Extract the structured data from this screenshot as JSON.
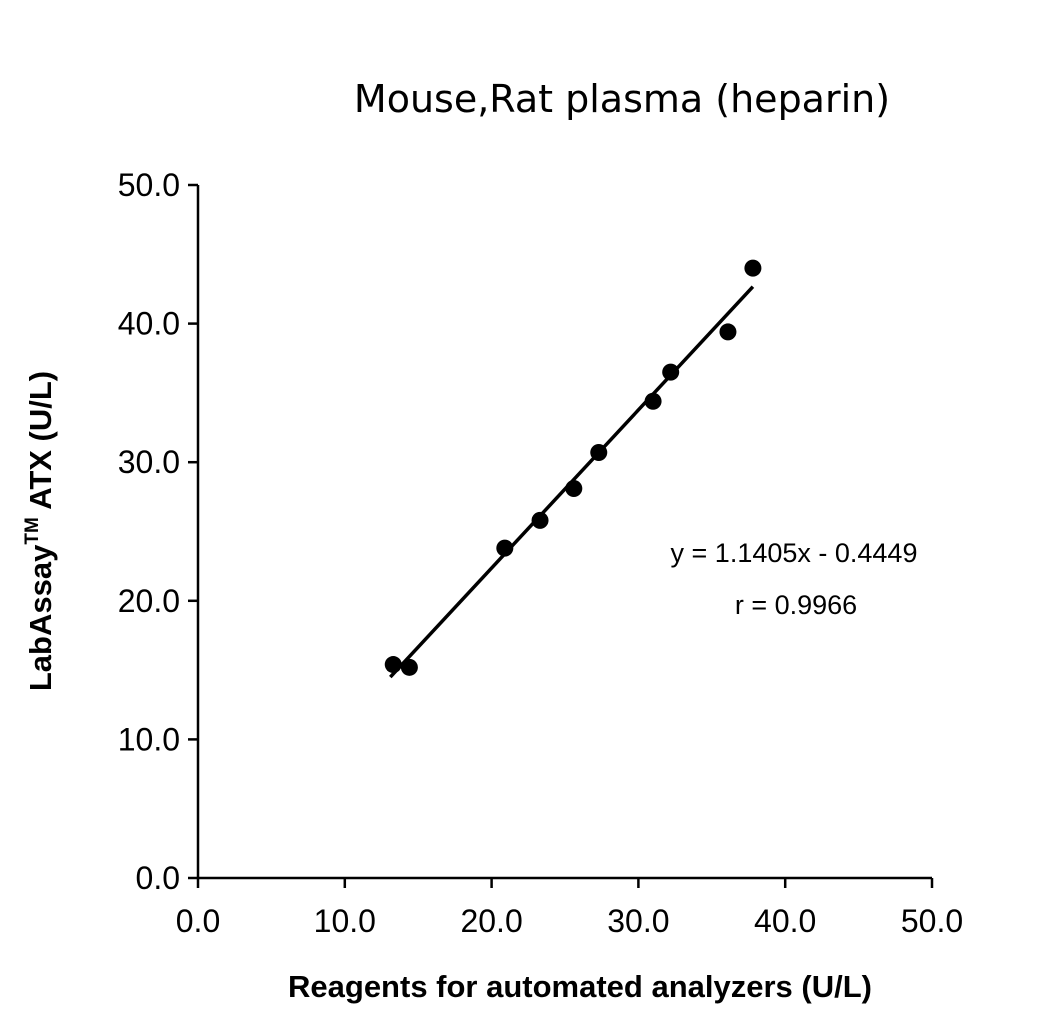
{
  "chart_data": {
    "type": "scatter",
    "title": "Mouse,Rat plasma (heparin)",
    "xlabel": "Reagents for automated analyzers (U/L)",
    "ylabel": {
      "before": "LabAssay",
      "superscript": "TM",
      "after": " ATX (U/L)"
    },
    "xlim": [
      0,
      50
    ],
    "ylim": [
      0,
      50
    ],
    "x_ticks": [
      "0.0",
      "10.0",
      "20.0",
      "30.0",
      "40.0",
      "50.0"
    ],
    "y_ticks": [
      "0.0",
      "10.0",
      "20.0",
      "30.0",
      "40.0",
      "50.0"
    ],
    "grid": false,
    "points": [
      {
        "x": 13.3,
        "y": 15.4
      },
      {
        "x": 14.4,
        "y": 15.2
      },
      {
        "x": 20.9,
        "y": 23.8
      },
      {
        "x": 23.3,
        "y": 25.8
      },
      {
        "x": 25.6,
        "y": 28.1
      },
      {
        "x": 27.3,
        "y": 30.7
      },
      {
        "x": 31.0,
        "y": 34.4
      },
      {
        "x": 32.2,
        "y": 36.5
      },
      {
        "x": 36.1,
        "y": 39.4
      },
      {
        "x": 37.8,
        "y": 44.0
      }
    ],
    "trendline": {
      "slope": 1.1405,
      "intercept": -0.4449,
      "x_range": [
        13.1,
        37.8
      ]
    },
    "annotations": {
      "equation": "y = 1.1405x - 0.4449",
      "r": "r = 0.9966"
    },
    "colors": {
      "points": "#000000",
      "line": "#000000",
      "axis": "#000000"
    }
  }
}
